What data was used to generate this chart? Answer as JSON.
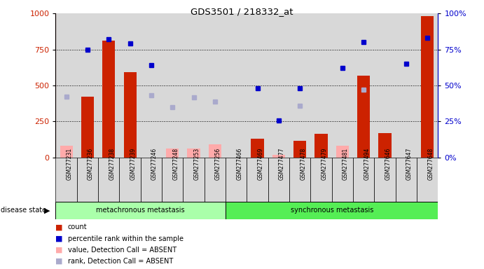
{
  "title": "GDS3501 / 218332_at",
  "samples": [
    "GSM277231",
    "GSM277236",
    "GSM277238",
    "GSM277239",
    "GSM277246",
    "GSM277248",
    "GSM277253",
    "GSM277256",
    "GSM277466",
    "GSM277469",
    "GSM277477",
    "GSM277478",
    "GSM277479",
    "GSM277481",
    "GSM277494",
    "GSM277646",
    "GSM277647",
    "GSM277648"
  ],
  "count_present": [
    null,
    420,
    810,
    590,
    null,
    null,
    null,
    null,
    null,
    130,
    null,
    115,
    165,
    null,
    570,
    170,
    null,
    980
  ],
  "count_absent_val": [
    80,
    null,
    null,
    null,
    null,
    60,
    60,
    90,
    null,
    null,
    20,
    null,
    null,
    80,
    null,
    null,
    null,
    null
  ],
  "pct_rank_present": [
    null,
    750,
    820,
    790,
    640,
    null,
    null,
    null,
    null,
    480,
    255,
    480,
    null,
    620,
    800,
    null,
    650,
    830
  ],
  "rank_absent": [
    420,
    null,
    null,
    null,
    430,
    350,
    415,
    390,
    null,
    null,
    null,
    360,
    null,
    null,
    470,
    null,
    null,
    null
  ],
  "group1_count": 8,
  "group2_count": 10,
  "group1_label": "metachronous metastasis",
  "group2_label": "synchronous metastasis",
  "bar_color_red": "#cc2200",
  "bar_color_pink": "#ffaaaa",
  "dot_color_blue": "#0000cc",
  "dot_color_lightblue": "#aaaacc",
  "group1_bg": "#aaffaa",
  "group2_bg": "#55ee55",
  "legend_items": [
    "count",
    "percentile rank within the sample",
    "value, Detection Call = ABSENT",
    "rank, Detection Call = ABSENT"
  ]
}
